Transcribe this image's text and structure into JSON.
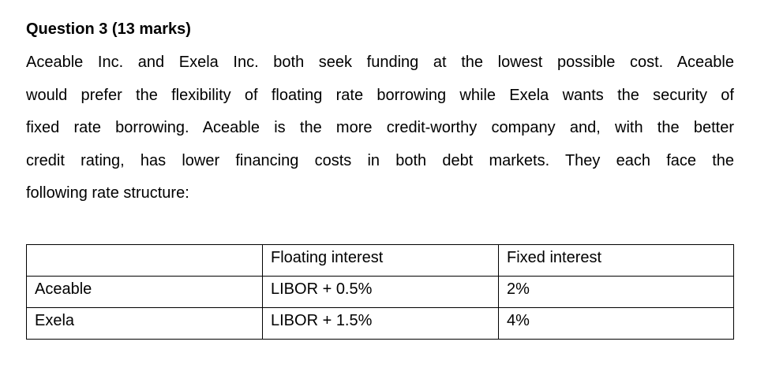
{
  "question": {
    "heading": "Question 3 (13 marks)",
    "paragraph_lines": [
      "Aceable Inc. and Exela Inc. both seek funding at the lowest possible cost. Aceable",
      "would prefer the flexibility of floating rate borrowing while Exela wants the security of",
      "fixed rate borrowing.  Aceable is the more credit-worthy company and, with the better",
      "credit rating, has lower financing costs in both debt markets. They each face the",
      "following rate structure:"
    ]
  },
  "table": {
    "headers": [
      "",
      "Floating interest",
      "Fixed interest"
    ],
    "rows": [
      [
        "Aceable",
        "LIBOR + 0.5%",
        "2%"
      ],
      [
        "Exela",
        "LIBOR + 1.5%",
        "4%"
      ]
    ]
  }
}
